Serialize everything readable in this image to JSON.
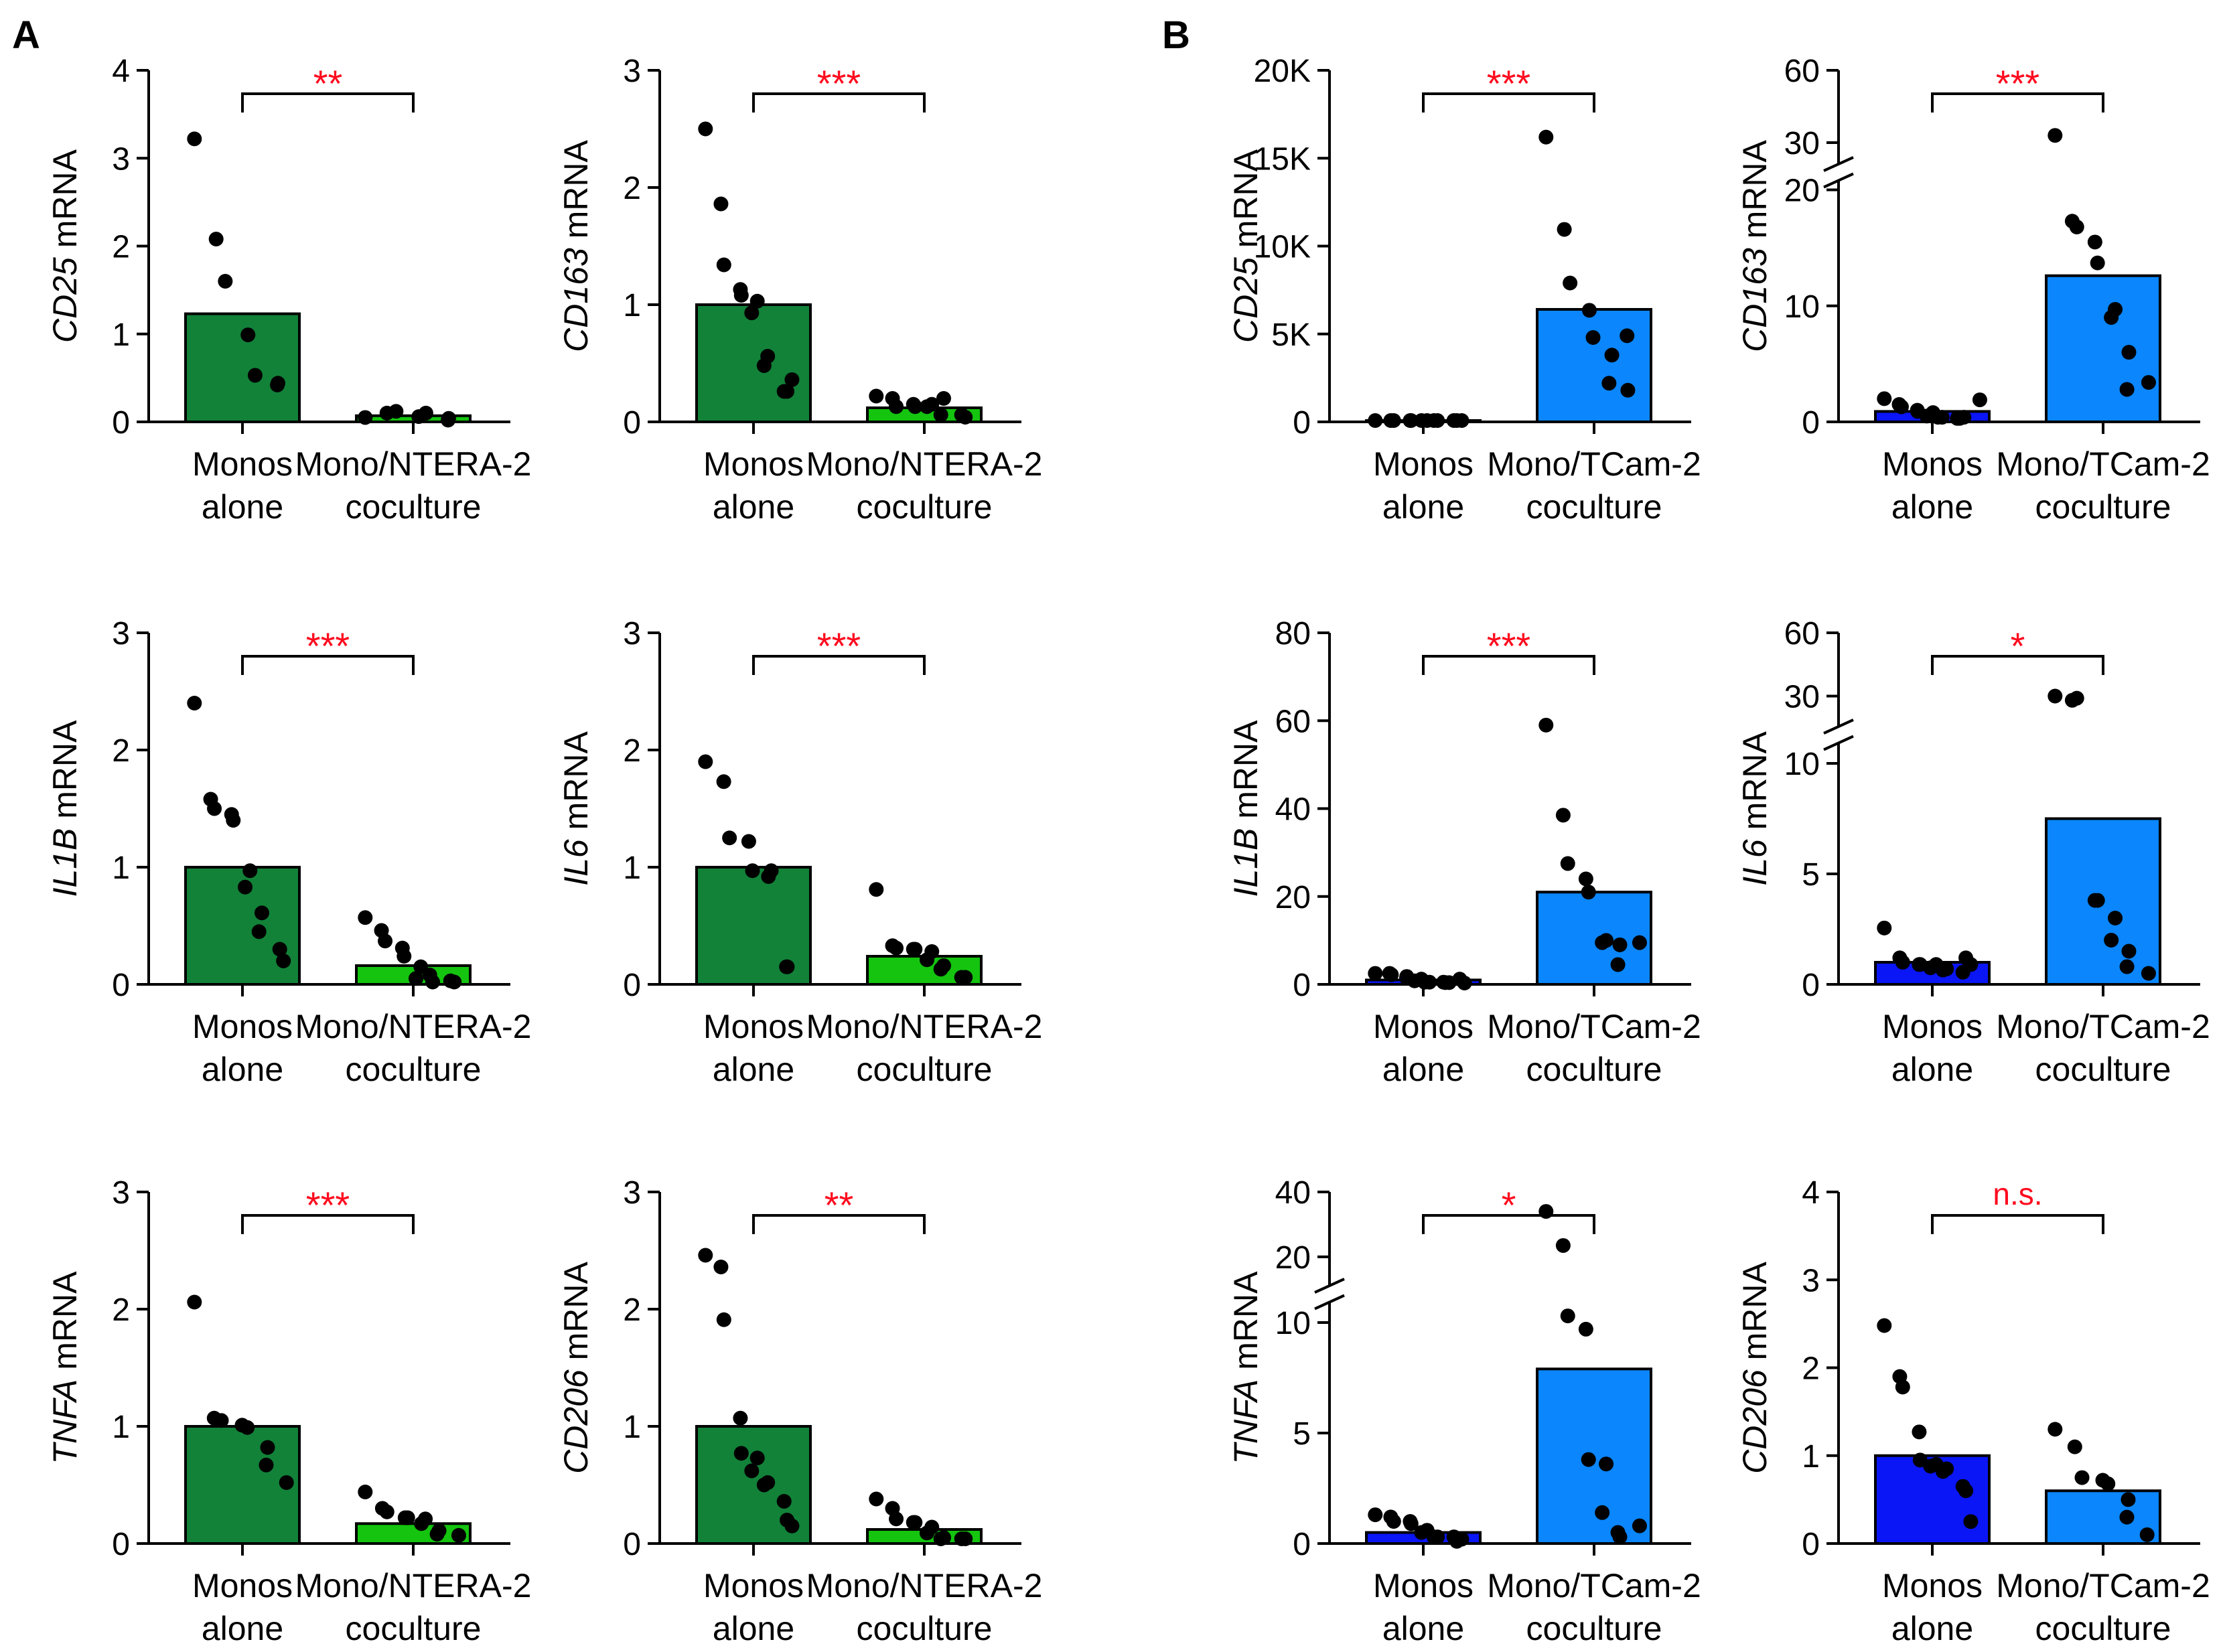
{
  "panel_labels": [
    "A",
    "B"
  ],
  "colors": {
    "ntera_alone": "#128239",
    "ntera_co": "#14c40f",
    "tcam_alone": "#0a16f5",
    "tcam_co": "#0b86fc",
    "sig": "#ff0a1e",
    "dot": "#000000"
  },
  "chart_data": [
    {
      "id": "A-CD25",
      "panel": "A",
      "type": "bar",
      "gene": "CD25",
      "ylabel_suffix": " mRNA",
      "categories": [
        [
          "Monos",
          "alone"
        ],
        [
          "Mono/NTERA-2",
          "coculture"
        ]
      ],
      "ylim": [
        0,
        4
      ],
      "ticks": [
        0,
        1,
        2,
        3,
        4
      ],
      "tick_labels": [
        "0",
        "1",
        "2",
        "3",
        "4"
      ],
      "sig": "**",
      "bar_colors": [
        "ntera_alone",
        "ntera_co"
      ],
      "series": [
        {
          "name": "Monos alone",
          "mean": 1.23,
          "points": [
            3.22,
            2.08,
            1.6,
            0.99,
            0.53,
            0.42,
            0.44
          ]
        },
        {
          "name": "Mono/NTERA-2 coculture",
          "mean": 0.07,
          "points": [
            0.05,
            0.1,
            0.12,
            0.06,
            0.1,
            0.02,
            0.04
          ]
        }
      ]
    },
    {
      "id": "A-CD163",
      "panel": "A",
      "type": "bar",
      "gene": "CD163",
      "ylabel_suffix": " mRNA",
      "categories": [
        [
          "Monos",
          "alone"
        ],
        [
          "Mono/NTERA-2",
          "coculture"
        ]
      ],
      "ylim": [
        0,
        3
      ],
      "ticks": [
        0,
        1,
        2,
        3
      ],
      "tick_labels": [
        "0",
        "1",
        "2",
        "3"
      ],
      "sig": "***",
      "bar_colors": [
        "ntera_alone",
        "ntera_co"
      ],
      "series": [
        {
          "name": "Monos alone",
          "mean": 1.0,
          "points": [
            2.5,
            1.86,
            1.34,
            1.13,
            1.08,
            1.03,
            0.93,
            0.56,
            0.48,
            0.26,
            0.26,
            0.36
          ]
        },
        {
          "name": "Mono/NTERA-2 coculture",
          "mean": 0.12,
          "points": [
            0.22,
            0.2,
            0.13,
            0.15,
            0.13,
            0.15,
            0.13,
            0.2,
            0.06,
            0.06,
            0.04
          ]
        }
      ]
    },
    {
      "id": "B-CD25",
      "panel": "B",
      "type": "bar",
      "gene": "CD25",
      "ylabel_suffix": " mRNA",
      "categories": [
        [
          "Monos",
          "alone"
        ],
        [
          "Mono/TCam-2",
          "coculture"
        ]
      ],
      "ylim": [
        0,
        20000
      ],
      "ticks": [
        0,
        5000,
        10000,
        15000,
        20000
      ],
      "tick_labels": [
        "0",
        "5K",
        "10K",
        "15K",
        "20K"
      ],
      "sig": "***",
      "bar_colors": [
        "tcam_alone",
        "tcam_co"
      ],
      "series": [
        {
          "name": "Monos alone",
          "mean": 10,
          "points": [
            0,
            0,
            0,
            0,
            0,
            0,
            0,
            0,
            0,
            0,
            0,
            0
          ]
        },
        {
          "name": "Mono/TCam-2 coculture",
          "mean": 6400,
          "points": [
            16200,
            10950,
            7900,
            6350,
            4800,
            3800,
            2200,
            1800,
            4900
          ]
        }
      ]
    },
    {
      "id": "B-CD163",
      "panel": "B",
      "type": "bar",
      "gene": "CD163",
      "ylabel_suffix": " mRNA",
      "categories": [
        [
          "Monos",
          "alone"
        ],
        [
          "Mono/TCam-2",
          "coculture"
        ]
      ],
      "ylim": [
        0,
        60
      ],
      "ticks": [
        0,
        10,
        20,
        30,
        60
      ],
      "tick_labels": [
        "0",
        "10",
        "20",
        "30",
        "60"
      ],
      "broken_axis": {
        "lower_max": 20,
        "upper_range": [
          25,
          60
        ]
      },
      "sig": "***",
      "bar_colors": [
        "tcam_alone",
        "tcam_co"
      ],
      "series": [
        {
          "name": "Monos alone",
          "mean": 0.9,
          "points": [
            2.0,
            1.5,
            1.3,
            1.0,
            0.9,
            0.8,
            0.5,
            0.4,
            0.4,
            0.3,
            0.3,
            0.4,
            1.9
          ]
        },
        {
          "name": "Mono/TCam-2 coculture",
          "mean": 12.6,
          "points": [
            33,
            17.3,
            16.8,
            15.5,
            13.7,
            9.7,
            9.0,
            6.0,
            2.8,
            3.4
          ]
        }
      ]
    },
    {
      "id": "A-IL1B",
      "panel": "A",
      "type": "bar",
      "gene": "IL1B",
      "ylabel_suffix": " mRNA",
      "categories": [
        [
          "Monos",
          "alone"
        ],
        [
          "Mono/NTERA-2",
          "coculture"
        ]
      ],
      "ylim": [
        0,
        3
      ],
      "ticks": [
        0,
        1,
        2,
        3
      ],
      "tick_labels": [
        "0",
        "1",
        "2",
        "3"
      ],
      "sig": "***",
      "bar_colors": [
        "ntera_alone",
        "ntera_co"
      ],
      "series": [
        {
          "name": "Monos alone",
          "mean": 1.0,
          "points": [
            2.4,
            1.58,
            1.5,
            1.45,
            1.4,
            0.97,
            0.83,
            0.61,
            0.45,
            0.3,
            0.2
          ]
        },
        {
          "name": "Mono/NTERA-2 coculture",
          "mean": 0.16,
          "points": [
            0.57,
            0.46,
            0.37,
            0.31,
            0.24,
            0.15,
            0.05,
            0.02,
            0.08,
            0.03,
            0.02
          ]
        }
      ]
    },
    {
      "id": "A-IL6",
      "panel": "A",
      "type": "bar",
      "gene": "IL6",
      "ylabel_suffix": " mRNA",
      "categories": [
        [
          "Monos",
          "alone"
        ],
        [
          "Mono/NTERA-2",
          "coculture"
        ]
      ],
      "ylim": [
        0,
        3
      ],
      "ticks": [
        0,
        1,
        2,
        3
      ],
      "tick_labels": [
        "0",
        "1",
        "2",
        "3"
      ],
      "sig": "***",
      "bar_colors": [
        "ntera_alone",
        "ntera_co"
      ],
      "series": [
        {
          "name": "Monos alone",
          "mean": 1.0,
          "points": [
            1.9,
            1.73,
            1.25,
            1.22,
            0.97,
            0.97,
            0.92,
            0.15,
            0.15
          ]
        },
        {
          "name": "Mono/NTERA-2 coculture",
          "mean": 0.24,
          "points": [
            0.81,
            0.33,
            0.31,
            0.3,
            0.3,
            0.28,
            0.21,
            0.16,
            0.13,
            0.06,
            0.06
          ]
        }
      ]
    },
    {
      "id": "B-IL1B",
      "panel": "B",
      "type": "bar",
      "gene": "IL1B",
      "ylabel_suffix": " mRNA",
      "categories": [
        [
          "Monos",
          "alone"
        ],
        [
          "Mono/TCam-2",
          "coculture"
        ]
      ],
      "ylim": [
        0,
        80
      ],
      "ticks": [
        0,
        20,
        40,
        60,
        80
      ],
      "tick_labels": [
        "0",
        "20",
        "40",
        "60",
        "80"
      ],
      "sig": "***",
      "bar_colors": [
        "tcam_alone",
        "tcam_co"
      ],
      "series": [
        {
          "name": "Monos alone",
          "mean": 1.0,
          "points": [
            2.5,
            2.5,
            2.2,
            1.8,
            1.5,
            1.2,
            0.8,
            0.5,
            0.5,
            0.5,
            0.4,
            0.4,
            0.3,
            1.2
          ]
        },
        {
          "name": "Mono/TCam-2 coculture",
          "mean": 21,
          "points": [
            59,
            38.5,
            27.5,
            24,
            21,
            10,
            9.5,
            9,
            4.5,
            9.5
          ]
        }
      ]
    },
    {
      "id": "B-IL6",
      "panel": "B",
      "type": "bar",
      "gene": "IL6",
      "ylabel_suffix": " mRNA",
      "categories": [
        [
          "Monos",
          "alone"
        ],
        [
          "Mono/TCam-2",
          "coculture"
        ]
      ],
      "ylim": [
        0,
        60
      ],
      "ticks": [
        0,
        5,
        10,
        30,
        60
      ],
      "tick_labels": [
        "0",
        "5",
        "10",
        "30",
        "60"
      ],
      "broken_axis": {
        "lower_max": 10.5,
        "upper_range": [
          20,
          60
        ]
      },
      "sig": "*",
      "bar_colors": [
        "tcam_alone",
        "tcam_co"
      ],
      "series": [
        {
          "name": "Monos alone",
          "mean": 1.0,
          "points": [
            2.55,
            1.2,
            1.0,
            0.9,
            0.9,
            0.9,
            0.75,
            0.7,
            0.65,
            0.55,
            1.2,
            0.9
          ]
        },
        {
          "name": "Mono/TCam-2 coculture",
          "mean": 7.5,
          "points": [
            30,
            28,
            29,
            3.8,
            3.8,
            3.0,
            2.0,
            1.5,
            0.8,
            0.5
          ]
        }
      ]
    },
    {
      "id": "A-TNFA",
      "panel": "A",
      "type": "bar",
      "gene": "TNFA",
      "ylabel_suffix": " mRNA",
      "categories": [
        [
          "Monos",
          "alone"
        ],
        [
          "Mono/NTERA-2",
          "coculture"
        ]
      ],
      "ylim": [
        0,
        3
      ],
      "ticks": [
        0,
        1,
        2,
        3
      ],
      "tick_labels": [
        "0",
        "1",
        "2",
        "3"
      ],
      "sig": "***",
      "bar_colors": [
        "ntera_alone",
        "ntera_co"
      ],
      "series": [
        {
          "name": "Monos alone",
          "mean": 1.0,
          "points": [
            2.06,
            1.07,
            1.05,
            1.01,
            0.99,
            0.82,
            0.67,
            0.52
          ]
        },
        {
          "name": "Mono/NTERA-2 coculture",
          "mean": 0.17,
          "points": [
            0.44,
            0.3,
            0.27,
            0.22,
            0.22,
            0.21,
            0.17,
            0.11,
            0.08,
            0.07
          ]
        }
      ]
    },
    {
      "id": "A-CD206",
      "panel": "A",
      "type": "bar",
      "gene": "CD206",
      "ylabel_suffix": " mRNA",
      "categories": [
        [
          "Monos",
          "alone"
        ],
        [
          "Mono/NTERA-2",
          "coculture"
        ]
      ],
      "ylim": [
        0,
        3
      ],
      "ticks": [
        0,
        1,
        2,
        3
      ],
      "tick_labels": [
        "0",
        "1",
        "2",
        "3"
      ],
      "sig": "**",
      "bar_colors": [
        "ntera_alone",
        "ntera_co"
      ],
      "series": [
        {
          "name": "Monos alone",
          "mean": 1.0,
          "points": [
            2.46,
            2.36,
            1.91,
            1.07,
            0.77,
            0.73,
            0.62,
            0.52,
            0.5,
            0.36,
            0.2,
            0.15
          ]
        },
        {
          "name": "Mono/NTERA-2 coculture",
          "mean": 0.12,
          "points": [
            0.38,
            0.3,
            0.21,
            0.18,
            0.18,
            0.14,
            0.09,
            0.05,
            0.04,
            0.04,
            0.04
          ]
        }
      ]
    },
    {
      "id": "B-TNFA",
      "panel": "B",
      "type": "bar",
      "gene": "TNFA",
      "ylabel_suffix": " mRNA",
      "categories": [
        [
          "Monos",
          "alone"
        ],
        [
          "Mono/TCam-2",
          "coculture"
        ]
      ],
      "ylim": [
        0,
        40
      ],
      "ticks": [
        0,
        5,
        10,
        20,
        40
      ],
      "tick_labels": [
        "0",
        "5",
        "10",
        "20",
        "40"
      ],
      "broken_axis": {
        "lower_max": 10.5,
        "upper_range": [
          14,
          40
        ]
      },
      "sig": "*",
      "bar_colors": [
        "tcam_alone",
        "tcam_co"
      ],
      "series": [
        {
          "name": "Monos alone",
          "mean": 0.5,
          "points": [
            1.3,
            1.2,
            1.0,
            1.0,
            0.9,
            0.6,
            0.5,
            0.3,
            0.3,
            0.3,
            0.1,
            0.2
          ]
        },
        {
          "name": "Mono/TCam-2 coculture",
          "mean": 7.9,
          "points": [
            34,
            23.5,
            10.3,
            9.7,
            3.8,
            3.6,
            1.4,
            0.3,
            0.5,
            0.8
          ]
        }
      ]
    },
    {
      "id": "B-CD206",
      "panel": "B",
      "type": "bar",
      "gene": "CD206",
      "ylabel_suffix": " mRNA",
      "categories": [
        [
          "Monos",
          "alone"
        ],
        [
          "Mono/TCam-2",
          "coculture"
        ]
      ],
      "ylim": [
        0,
        4
      ],
      "ticks": [
        0,
        1,
        2,
        3,
        4
      ],
      "tick_labels": [
        "0",
        "1",
        "2",
        "3",
        "4"
      ],
      "sig": "n.s.",
      "bar_colors": [
        "tcam_alone",
        "tcam_co"
      ],
      "series": [
        {
          "name": "Monos alone",
          "mean": 1.0,
          "points": [
            2.48,
            1.9,
            1.78,
            1.27,
            0.95,
            0.9,
            0.88,
            0.85,
            0.82,
            0.65,
            0.6,
            0.25
          ]
        },
        {
          "name": "Mono/TCam-2 coculture",
          "mean": 0.6,
          "points": [
            1.3,
            1.1,
            0.75,
            0.72,
            0.68,
            0.5,
            0.3,
            0.1
          ]
        }
      ]
    }
  ]
}
